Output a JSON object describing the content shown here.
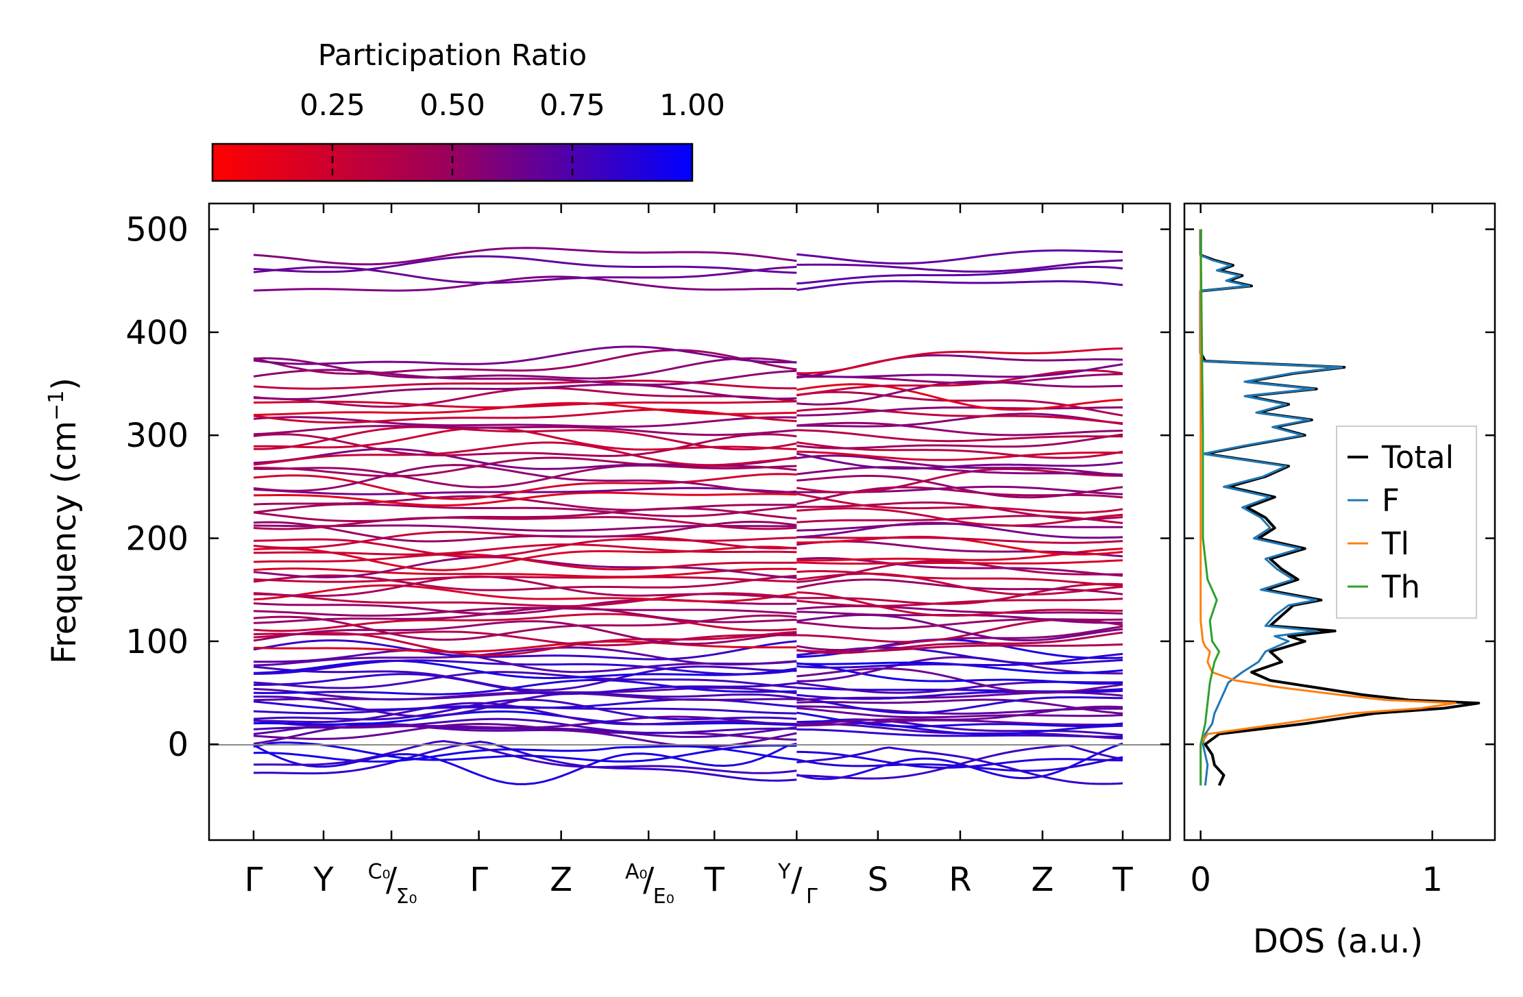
{
  "chart_data": [
    {
      "type": "line",
      "title": "",
      "ylabel_main": "Frequency (cm",
      "ylabel_sup": "−1",
      "ylabel_close": ")",
      "ylim": [
        -93,
        525
      ],
      "yticks": [
        "500",
        "400",
        "300",
        "200",
        "100",
        "0"
      ],
      "ytick_values": [
        500,
        400,
        300,
        200,
        100,
        0
      ],
      "kpath": {
        "labels": [
          "Γ",
          "Y",
          "Γ",
          "Z",
          "T",
          "S",
          "R",
          "Z",
          "T"
        ],
        "split_labels": [
          {
            "top": "C₀",
            "bottom": "Σ₀"
          },
          {
            "top": "A₀",
            "bottom": "E₀"
          },
          {
            "top": "Y",
            "bottom": "Γ"
          }
        ],
        "positions": [
          0,
          0.68,
          1.34,
          2.19,
          2.99,
          3.84,
          4.48,
          5.28,
          6.07,
          6.87,
          7.67,
          8.45
        ]
      },
      "series_summary": {
        "optical_high_band_range": [
          445,
          475
        ],
        "main_band_range": [
          10,
          375
        ],
        "imaginary_modes_min": -40,
        "band_count_approx": 72
      },
      "colorbar": {
        "title": "Participation Ratio",
        "ticks": [
          "0.25",
          "0.50",
          "0.75",
          "1.00"
        ],
        "tick_values": [
          0.25,
          0.5,
          0.75,
          1.0
        ],
        "range": [
          0.0,
          1.0
        ],
        "low_color": "#ff0000",
        "high_color": "#0000ff",
        "mid_color": "#800080"
      }
    },
    {
      "type": "line",
      "xlabel": "DOS (a.u.)",
      "xticks": [
        "0",
        "1"
      ],
      "xtick_values": [
        0,
        1
      ],
      "xlim": [
        -0.07,
        1.27
      ],
      "series": [
        {
          "name": "Total",
          "color": "#000000",
          "points": [
            [
              -40,
              0.08
            ],
            [
              -30,
              0.1
            ],
            [
              -20,
              0.06
            ],
            [
              -10,
              0.05
            ],
            [
              0,
              0.02
            ],
            [
              10,
              0.08
            ],
            [
              20,
              0.45
            ],
            [
              25,
              0.6
            ],
            [
              30,
              0.75
            ],
            [
              35,
              1.05
            ],
            [
              40,
              1.2
            ],
            [
              43,
              0.9
            ],
            [
              48,
              0.7
            ],
            [
              55,
              0.5
            ],
            [
              62,
              0.3
            ],
            [
              70,
              0.22
            ],
            [
              80,
              0.35
            ],
            [
              90,
              0.3
            ],
            [
              100,
              0.45
            ],
            [
              105,
              0.38
            ],
            [
              110,
              0.58
            ],
            [
              115,
              0.3
            ],
            [
              125,
              0.35
            ],
            [
              135,
              0.4
            ],
            [
              140,
              0.52
            ],
            [
              150,
              0.28
            ],
            [
              160,
              0.42
            ],
            [
              170,
              0.35
            ],
            [
              180,
              0.3
            ],
            [
              190,
              0.45
            ],
            [
              200,
              0.25
            ],
            [
              210,
              0.32
            ],
            [
              220,
              0.28
            ],
            [
              230,
              0.2
            ],
            [
              240,
              0.32
            ],
            [
              250,
              0.12
            ],
            [
              260,
              0.28
            ],
            [
              270,
              0.38
            ],
            [
              282,
              0.02
            ],
            [
              290,
              0.2
            ],
            [
              300,
              0.45
            ],
            [
              308,
              0.32
            ],
            [
              315,
              0.48
            ],
            [
              322,
              0.25
            ],
            [
              330,
              0.38
            ],
            [
              338,
              0.2
            ],
            [
              345,
              0.5
            ],
            [
              352,
              0.2
            ],
            [
              360,
              0.4
            ],
            [
              366,
              0.62
            ],
            [
              372,
              0.02
            ],
            [
              380,
              0.0
            ],
            [
              400,
              0.0
            ],
            [
              440,
              0.0
            ],
            [
              445,
              0.22
            ],
            [
              450,
              0.12
            ],
            [
              455,
              0.18
            ],
            [
              460,
              0.08
            ],
            [
              465,
              0.14
            ],
            [
              470,
              0.06
            ],
            [
              475,
              0.0
            ],
            [
              500,
              0.0
            ]
          ]
        },
        {
          "name": "F",
          "color": "#1f77b4",
          "points": [
            [
              -40,
              0.02
            ],
            [
              -20,
              0.03
            ],
            [
              0,
              0.01
            ],
            [
              10,
              0.02
            ],
            [
              20,
              0.05
            ],
            [
              30,
              0.06
            ],
            [
              40,
              0.08
            ],
            [
              50,
              0.1
            ],
            [
              60,
              0.12
            ],
            [
              70,
              0.18
            ],
            [
              80,
              0.25
            ],
            [
              90,
              0.28
            ],
            [
              100,
              0.38
            ],
            [
              105,
              0.32
            ],
            [
              110,
              0.5
            ],
            [
              115,
              0.28
            ],
            [
              125,
              0.32
            ],
            [
              135,
              0.38
            ],
            [
              140,
              0.5
            ],
            [
              150,
              0.26
            ],
            [
              160,
              0.4
            ],
            [
              170,
              0.33
            ],
            [
              180,
              0.28
            ],
            [
              190,
              0.43
            ],
            [
              200,
              0.23
            ],
            [
              210,
              0.3
            ],
            [
              220,
              0.26
            ],
            [
              230,
              0.18
            ],
            [
              240,
              0.3
            ],
            [
              250,
              0.1
            ],
            [
              260,
              0.27
            ],
            [
              270,
              0.37
            ],
            [
              282,
              0.01
            ],
            [
              290,
              0.19
            ],
            [
              300,
              0.44
            ],
            [
              308,
              0.31
            ],
            [
              315,
              0.47
            ],
            [
              322,
              0.24
            ],
            [
              330,
              0.37
            ],
            [
              338,
              0.19
            ],
            [
              345,
              0.49
            ],
            [
              352,
              0.19
            ],
            [
              360,
              0.39
            ],
            [
              366,
              0.61
            ],
            [
              372,
              0.01
            ],
            [
              380,
              0.0
            ],
            [
              440,
              0.0
            ],
            [
              445,
              0.21
            ],
            [
              450,
              0.11
            ],
            [
              455,
              0.17
            ],
            [
              460,
              0.07
            ],
            [
              465,
              0.13
            ],
            [
              470,
              0.05
            ],
            [
              475,
              0.0
            ],
            [
              500,
              0.0
            ]
          ]
        },
        {
          "name": "Tl",
          "color": "#ff7f0e",
          "points": [
            [
              -40,
              0.0
            ],
            [
              0,
              0.0
            ],
            [
              10,
              0.03
            ],
            [
              20,
              0.35
            ],
            [
              25,
              0.5
            ],
            [
              30,
              0.65
            ],
            [
              35,
              0.95
            ],
            [
              40,
              1.1
            ],
            [
              43,
              0.8
            ],
            [
              48,
              0.6
            ],
            [
              55,
              0.35
            ],
            [
              62,
              0.15
            ],
            [
              70,
              0.05
            ],
            [
              80,
              0.03
            ],
            [
              90,
              0.04
            ],
            [
              95,
              0.02
            ],
            [
              100,
              0.01
            ],
            [
              120,
              0.0
            ],
            [
              500,
              0.0
            ]
          ]
        },
        {
          "name": "Th",
          "color": "#2ca02c",
          "points": [
            [
              -40,
              0.0
            ],
            [
              0,
              0.0
            ],
            [
              20,
              0.02
            ],
            [
              40,
              0.03
            ],
            [
              60,
              0.04
            ],
            [
              80,
              0.06
            ],
            [
              90,
              0.08
            ],
            [
              100,
              0.05
            ],
            [
              120,
              0.04
            ],
            [
              140,
              0.07
            ],
            [
              160,
              0.03
            ],
            [
              180,
              0.02
            ],
            [
              200,
              0.01
            ],
            [
              240,
              0.01
            ],
            [
              300,
              0.01
            ],
            [
              500,
              0.0
            ]
          ]
        }
      ],
      "legend": {
        "placement": "center-right",
        "entries": [
          "Total",
          "F",
          "Tl",
          "Th"
        ]
      }
    }
  ]
}
